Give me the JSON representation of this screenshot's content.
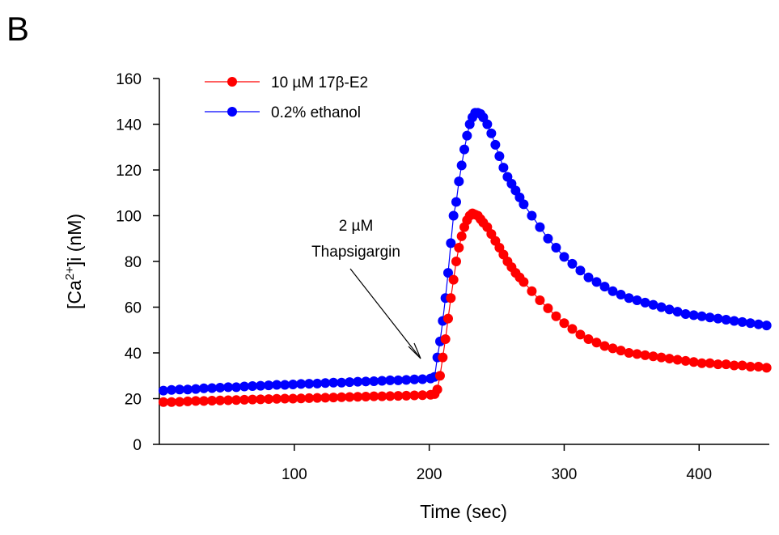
{
  "chart_data": {
    "type": "line",
    "panel_label": "B",
    "x_label": "Time (sec)",
    "y_label": [
      "[Ca",
      "2+",
      "]i (nM)"
    ],
    "annotation": [
      "2 µM",
      "Thapsigargin"
    ],
    "xlim": [
      0,
      452
    ],
    "xticks": [
      100,
      200,
      300,
      400
    ],
    "ylim": [
      0,
      160
    ],
    "yticks": [
      0,
      20,
      40,
      60,
      80,
      100,
      120,
      140,
      160
    ],
    "legend": "upper left",
    "x": [
      3,
      9,
      15,
      21,
      27,
      33,
      39,
      45,
      51,
      57,
      63,
      69,
      75,
      81,
      87,
      93,
      99,
      105,
      111,
      117,
      123,
      129,
      135,
      141,
      147,
      153,
      159,
      165,
      171,
      177,
      183,
      189,
      195,
      201,
      204,
      206,
      208,
      210,
      212,
      214,
      216,
      218,
      220,
      222,
      224,
      226,
      228,
      230,
      232,
      234,
      236,
      238,
      240,
      243,
      246,
      249,
      252,
      255,
      258,
      261,
      264,
      267,
      270,
      276,
      282,
      288,
      294,
      300,
      306,
      312,
      318,
      324,
      330,
      336,
      342,
      348,
      354,
      360,
      366,
      372,
      378,
      384,
      390,
      396,
      402,
      408,
      414,
      420,
      426,
      432,
      438,
      444,
      450
    ],
    "series": [
      {
        "name": "10 µM 17β-E2",
        "color": "#ff0000",
        "values": [
          18.5,
          18.5,
          18.6,
          18.8,
          19,
          19,
          19.1,
          19.2,
          19.3,
          19.4,
          19.5,
          19.6,
          19.7,
          19.8,
          19.9,
          20,
          20,
          20.1,
          20.2,
          20.3,
          20.4,
          20.5,
          20.6,
          20.7,
          20.8,
          20.9,
          21,
          21,
          21.1,
          21.2,
          21.3,
          21.4,
          21.5,
          21.7,
          22,
          24,
          30,
          38,
          46,
          55,
          64,
          72,
          80,
          86,
          91,
          95,
          98,
          100,
          101,
          100.5,
          100,
          98.5,
          97,
          95,
          92,
          89,
          86,
          83,
          80,
          77.5,
          75,
          73,
          71,
          67,
          63,
          59.5,
          56,
          53,
          50.5,
          48,
          46,
          44.5,
          43,
          42,
          41,
          40,
          39.5,
          39,
          38.5,
          38,
          37.5,
          37,
          36.5,
          36,
          35.5,
          35.5,
          35,
          35,
          34.5,
          34.5,
          34,
          34,
          33.5
        ]
      },
      {
        "name": "0.2% ethanol",
        "color": "#0000ff",
        "values": [
          23.5,
          23.8,
          24,
          24,
          24.2,
          24.5,
          24.6,
          24.8,
          25,
          25,
          25.3,
          25.5,
          25.6,
          25.8,
          26,
          26,
          26.2,
          26.4,
          26.5,
          26.6,
          26.8,
          27,
          27,
          27.2,
          27.4,
          27.5,
          27.6,
          27.8,
          28,
          28,
          28.2,
          28.4,
          28.5,
          28.8,
          29.5,
          38,
          45,
          54,
          64,
          75,
          88,
          100,
          106,
          115,
          122,
          129,
          135,
          140,
          143,
          145,
          145,
          144.5,
          143,
          140,
          136,
          131,
          126,
          121,
          117,
          114,
          111,
          108,
          105,
          100,
          95,
          90,
          86,
          82,
          79,
          76,
          73,
          71,
          69,
          67,
          65.5,
          64,
          63,
          62,
          61,
          60,
          59,
          58,
          57,
          56.5,
          56,
          55.5,
          55,
          54.5,
          54,
          53.5,
          53,
          52.5,
          52
        ]
      }
    ]
  }
}
